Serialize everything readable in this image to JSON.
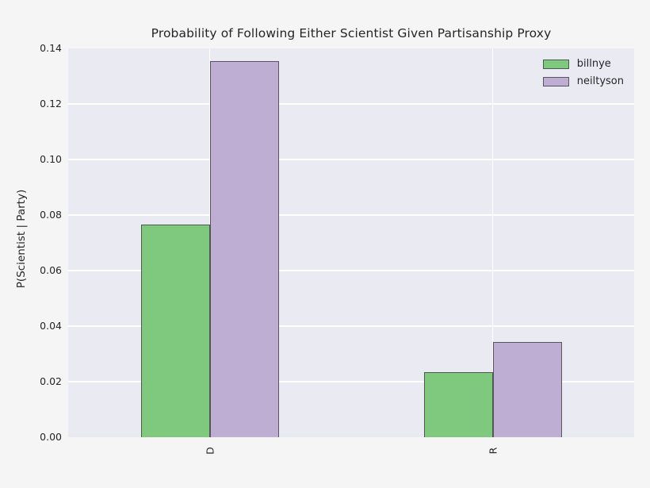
{
  "figure": {
    "background_color": "#f5f5f6",
    "plot_background_color": "#eaeaf2",
    "grid_color": "#ffffff",
    "text_color": "#262626",
    "bar_edge_color": "rgba(70,70,70,0.85)"
  },
  "chart_data": {
    "type": "bar",
    "title": "Probability of Following Either Scientist Given Partisanship Proxy",
    "xlabel": "",
    "ylabel": "P(Scientist | Party)",
    "categories": [
      "D",
      "R"
    ],
    "series": [
      {
        "name": "billnye",
        "color": "#7fc97f",
        "values": [
          0.0765,
          0.0234
        ]
      },
      {
        "name": "neiltyson",
        "color": "#beaed4",
        "values": [
          0.1354,
          0.0343
        ]
      }
    ],
    "ylim": [
      0,
      0.14
    ],
    "yticks": [
      "0.00",
      "0.02",
      "0.04",
      "0.06",
      "0.08",
      "0.10",
      "0.12",
      "0.14"
    ],
    "grid": true,
    "x_tick_rotation_deg": 90,
    "legend": {
      "position": "upper-right",
      "entries": [
        "billnye",
        "neiltyson"
      ]
    }
  }
}
